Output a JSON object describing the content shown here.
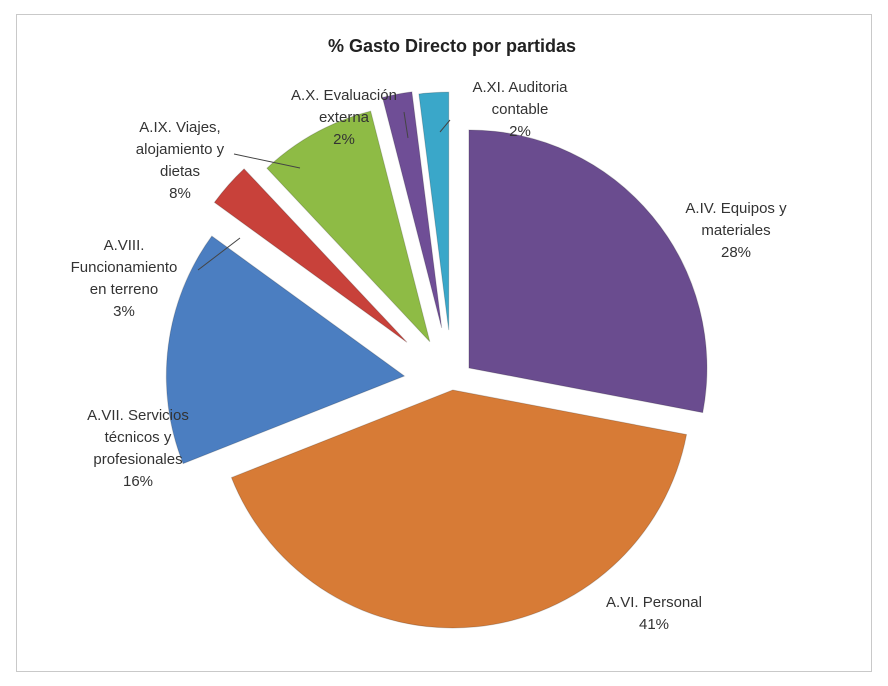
{
  "chart_data": {
    "type": "pie",
    "title": "% Gasto Directo por partidas",
    "slices": [
      {
        "label": "A.IV. Equipos y materiales",
        "label_lines": [
          "A.IV. Equipos y",
          "materiales"
        ],
        "pct_text": "28%",
        "value": 28,
        "color": "#6A4C8F"
      },
      {
        "label": "A.VI. Personal",
        "label_lines": [
          "A.VI. Personal"
        ],
        "pct_text": "41%",
        "value": 41,
        "color": "#D77B36"
      },
      {
        "label": "A.VII. Servicios técnicos y profesionales",
        "label_lines": [
          "A.VII. Servicios",
          "técnicos y",
          "profesionales"
        ],
        "pct_text": "16%",
        "value": 16,
        "color": "#4B7EC1"
      },
      {
        "label": "A.VIII. Funcionamiento en terreno",
        "label_lines": [
          "A.VIII.",
          "Funcionamiento",
          "en terreno"
        ],
        "pct_text": "3%",
        "value": 3,
        "color": "#C8413A"
      },
      {
        "label": "A.IX. Viajes, alojamiento y dietas",
        "label_lines": [
          "A.IX. Viajes,",
          "alojamiento y",
          "dietas"
        ],
        "pct_text": "8%",
        "value": 8,
        "color": "#8EBB45"
      },
      {
        "label": "A.X. Evaluación externa",
        "label_lines": [
          "A.X. Evaluación",
          "externa"
        ],
        "pct_text": "2%",
        "value": 2,
        "color": "#6F4E96"
      },
      {
        "label": "A.XI. Auditoria contable",
        "label_lines": [
          "A.XI. Auditoria",
          "contable"
        ],
        "pct_text": "2%",
        "value": 2,
        "color": "#3AA7C9"
      }
    ],
    "legend": "none"
  }
}
